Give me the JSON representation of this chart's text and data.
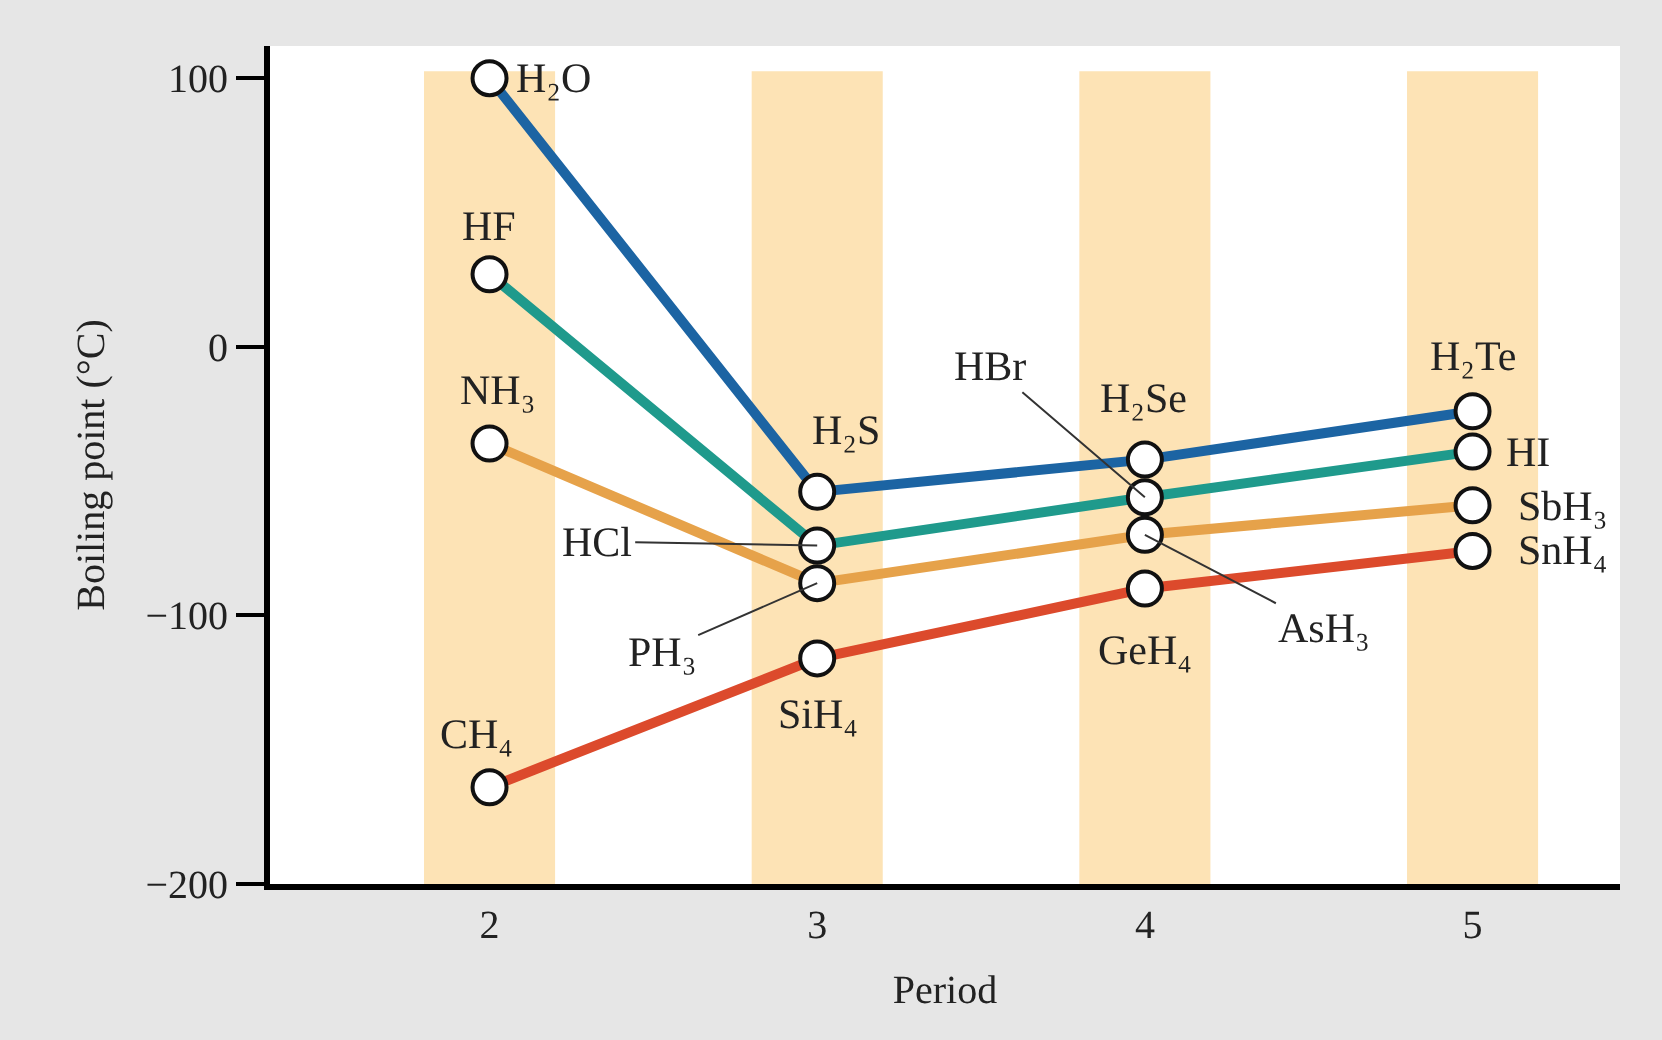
{
  "chart_data": {
    "type": "line",
    "xlabel": "Period",
    "ylabel": "Boiling point (°C)",
    "x": [
      2,
      3,
      4,
      5
    ],
    "series": [
      {
        "color": "#1c64a3",
        "values": [
          100,
          -54,
          -42,
          -24
        ]
      },
      {
        "color": "#1f9a8c",
        "values": [
          27,
          -74,
          -56,
          -39
        ]
      },
      {
        "color": "#e6a24a",
        "values": [
          -36,
          -88,
          -70,
          -59
        ]
      },
      {
        "color": "#dc4a2c",
        "values": [
          -164,
          -116,
          -90,
          -76
        ]
      }
    ],
    "xlim": [
      1.33,
      5.45
    ],
    "xticks": [
      2,
      3,
      4,
      5
    ],
    "ylim": [
      -200,
      112
    ],
    "yticks": [
      -200,
      -100,
      0,
      100
    ],
    "bands": [
      {
        "axis": "x",
        "from": 1.8,
        "to": 2.2,
        "color": "#fde3b5"
      },
      {
        "axis": "x",
        "from": 2.8,
        "to": 3.2,
        "color": "#fde3b5"
      },
      {
        "axis": "x",
        "from": 3.8,
        "to": 4.2,
        "color": "#fde3b5"
      },
      {
        "axis": "x",
        "from": 4.8,
        "to": 5.2,
        "color": "#fde3b5"
      }
    ],
    "annotations": [
      {
        "text": "H₂O",
        "x": 2,
        "y": 100
      },
      {
        "text": "HF",
        "x": 2,
        "y": 27
      },
      {
        "text": "NH₃",
        "x": 2,
        "y": -36
      },
      {
        "text": "CH₄",
        "x": 2,
        "y": -164
      },
      {
        "text": "H₂S",
        "x": 3,
        "y": -54
      },
      {
        "text": "HCl",
        "x": 3,
        "y": -74
      },
      {
        "text": "PH₃",
        "x": 3,
        "y": -88
      },
      {
        "text": "SiH₄",
        "x": 3,
        "y": -116
      },
      {
        "text": "H₂Se",
        "x": 4,
        "y": -42
      },
      {
        "text": "HBr",
        "x": 4,
        "y": -56
      },
      {
        "text": "AsH₃",
        "x": 4,
        "y": -70
      },
      {
        "text": "GeH₄",
        "x": 4,
        "y": -90
      },
      {
        "text": "H₂Te",
        "x": 5,
        "y": -24
      },
      {
        "text": "HI",
        "x": 5,
        "y": -39
      },
      {
        "text": "SbH₃",
        "x": 5,
        "y": -59
      },
      {
        "text": "SnH₄",
        "x": 5,
        "y": -76
      }
    ],
    "grid": false,
    "marker": "circle",
    "line_style": "solid"
  }
}
